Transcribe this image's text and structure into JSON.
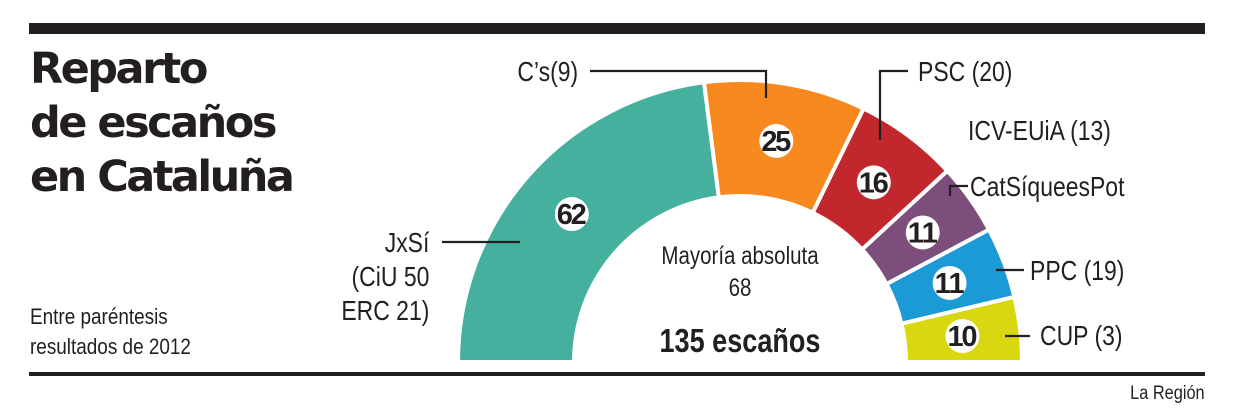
{
  "title_lines": [
    "Reparto",
    "de escaños",
    "en Cataluña"
  ],
  "note_lines": [
    "Entre paréntesis",
    "resultados de 2012"
  ],
  "credit": "La Región",
  "center": {
    "majority_label": "Mayoría absoluta",
    "majority_value": "68",
    "total_label": "135 escaños"
  },
  "labels": {
    "jxsi": [
      "JxSí",
      "(CiU 50",
      "ERC 21)"
    ],
    "cs": "C’s(9)",
    "psc": "PSC (20)",
    "icv": "ICV-EUiA (13)",
    "catsi": "CatSíqueesPot",
    "ppc": "PPC (19)",
    "cup": "CUP (3)"
  },
  "chart_data": {
    "type": "pie",
    "subtype": "hemicycle",
    "title": "Reparto de escaños en Cataluña",
    "total_seats": 135,
    "majority": 68,
    "categories": [
      "JxSí",
      "C’s",
      "PSC",
      "CatSíqueesPot",
      "PPC",
      "CUP"
    ],
    "values": [
      62,
      25,
      16,
      11,
      11,
      10
    ],
    "previous_2012": [
      "CiU 50 + ERC 21",
      "9",
      "20",
      "ICV-EUiA 13",
      "19",
      "3"
    ],
    "colors": [
      "#45b09e",
      "#f7891f",
      "#c1272d",
      "#7d4e7c",
      "#1b9ad6",
      "#d9d70f"
    ],
    "annotations": [
      "Entre paréntesis resultados de 2012",
      "Mayoría absoluta 68",
      "135 escaños"
    ]
  }
}
